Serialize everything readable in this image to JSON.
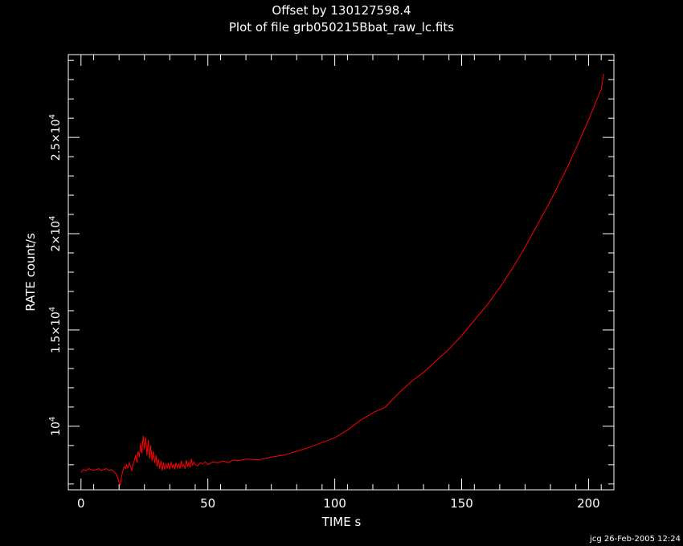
{
  "chart_data": {
    "type": "line",
    "title": "Offset by 130127598.4",
    "subtitle": "Plot of file grb050215Bbat_raw_lc.fits",
    "xlabel": "TIME  s",
    "ylabel": "RATE  count/s",
    "footer": "jcg 26-Feb-2005 12:24",
    "xlim": [
      -5,
      210
    ],
    "ylim": [
      6700,
      29300
    ],
    "x_ticks": [
      {
        "value": 0,
        "label": "0"
      },
      {
        "value": 50,
        "label": "50"
      },
      {
        "value": 100,
        "label": "100"
      },
      {
        "value": 150,
        "label": "150"
      },
      {
        "value": 200,
        "label": "200"
      }
    ],
    "y_ticks": [
      {
        "value": 10000,
        "mantissa": "10",
        "exp": "4"
      },
      {
        "value": 15000,
        "mantissa": "1.5×10",
        "exp": "4"
      },
      {
        "value": 20000,
        "mantissa": "2×10",
        "exp": "4"
      },
      {
        "value": 25000,
        "mantissa": "2.5×10",
        "exp": "4"
      }
    ],
    "grid": false,
    "series": [
      {
        "color": "#ff0000",
        "x": [
          0,
          1,
          2,
          3,
          4,
          5,
          6,
          7,
          8,
          9,
          10,
          11,
          12,
          13,
          14,
          15,
          15.5,
          16,
          16.5,
          17,
          17.5,
          18,
          18.5,
          19,
          19.5,
          20,
          20.5,
          21,
          21.5,
          22,
          22.5,
          23,
          23.5,
          24,
          24.5,
          25,
          25.5,
          26,
          26.5,
          27,
          27.5,
          28,
          28.5,
          29,
          29.5,
          30,
          30.5,
          31,
          31.5,
          32,
          32.5,
          33,
          33.5,
          34,
          34.5,
          35,
          35.5,
          36,
          36.5,
          37,
          37.5,
          38,
          38.5,
          39,
          39.5,
          40,
          40.5,
          41,
          41.5,
          42,
          42.5,
          43,
          43.5,
          44,
          44.5,
          45,
          46,
          47,
          48,
          49,
          50,
          52,
          54,
          56,
          58,
          60,
          62,
          65,
          70,
          75,
          80,
          85,
          90,
          95,
          100,
          105,
          110,
          115,
          120,
          125,
          130,
          135,
          140,
          145,
          150,
          155,
          160,
          165,
          170,
          175,
          180,
          185,
          190,
          195,
          200,
          205,
          206
        ],
        "y": [
          7600,
          7750,
          7700,
          7800,
          7750,
          7700,
          7750,
          7800,
          7700,
          7750,
          7800,
          7700,
          7750,
          7650,
          7500,
          7100,
          6950,
          7400,
          7700,
          7900,
          7800,
          8000,
          7850,
          8100,
          7900,
          7700,
          8000,
          8200,
          8500,
          8100,
          8700,
          8400,
          9100,
          8600,
          9500,
          8800,
          9400,
          8500,
          9300,
          8300,
          9000,
          8200,
          8700,
          8100,
          8500,
          7900,
          8300,
          7800,
          8200,
          7700,
          8100,
          7750,
          8050,
          7800,
          8100,
          7750,
          8150,
          7850,
          8000,
          7750,
          8100,
          7850,
          8050,
          7800,
          8200,
          7900,
          8000,
          7800,
          8250,
          7900,
          8100,
          7850,
          8300,
          7950,
          8150,
          8000,
          7950,
          8100,
          8050,
          8150,
          8000,
          8150,
          8100,
          8200,
          8100,
          8250,
          8200,
          8300,
          8250,
          8400,
          8500,
          8700,
          8900,
          9150,
          9400,
          9800,
          10300,
          10700,
          11000,
          11700,
          12300,
          12800,
          13400,
          14000,
          14700,
          15500,
          16300,
          17200,
          18200,
          19300,
          20500,
          21700,
          23000,
          24400,
          25900,
          27500,
          28300
        ]
      }
    ]
  }
}
